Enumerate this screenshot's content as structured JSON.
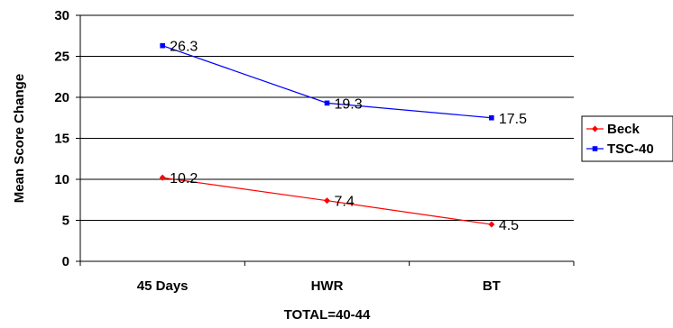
{
  "chart_data": {
    "type": "line",
    "title": "",
    "xlabel": "TOTAL=40-44",
    "ylabel": "Mean Score Change",
    "categories": [
      "45 Days",
      "HWR",
      "BT"
    ],
    "ylim": [
      0,
      30
    ],
    "yticks": [
      0,
      5,
      10,
      15,
      20,
      25,
      30
    ],
    "grid": true,
    "legend_position": "right",
    "series": [
      {
        "name": "Beck",
        "values": [
          10.2,
          7.4,
          4.5
        ],
        "labels": [
          "10.2",
          "7.4",
          "4.5"
        ],
        "color": "#ff0000",
        "marker": "diamond"
      },
      {
        "name": "TSC-40",
        "values": [
          26.3,
          19.3,
          17.5
        ],
        "labels": [
          "26.3",
          "19.3",
          "17.5"
        ],
        "color": "#0000ff",
        "marker": "square"
      }
    ]
  }
}
